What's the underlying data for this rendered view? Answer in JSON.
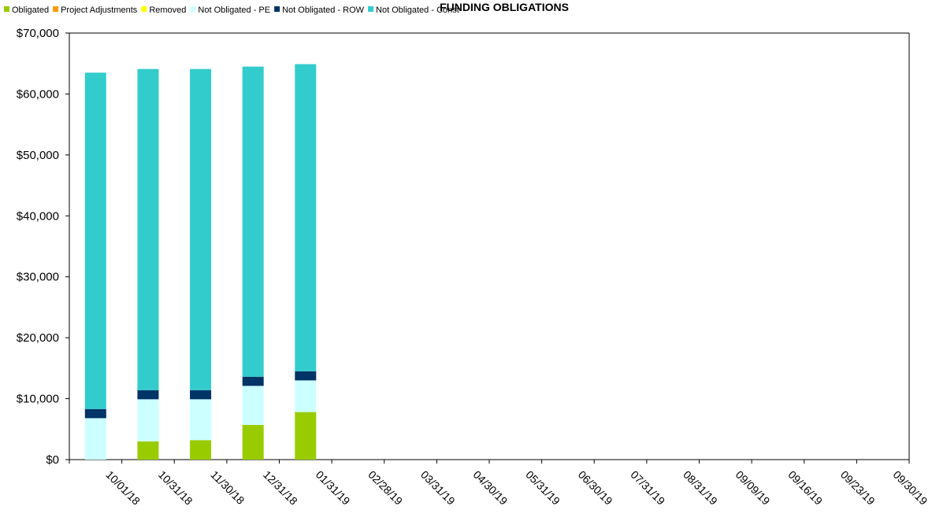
{
  "chart_data": {
    "type": "bar",
    "stacked": true,
    "title": "FUNDING OBLIGATIONS",
    "xlabel": "",
    "ylabel": "",
    "ylim": [
      0,
      70000
    ],
    "yticks": [
      "$0",
      "$10,000",
      "$20,000",
      "$30,000",
      "$40,000",
      "$50,000",
      "$60,000",
      "$70,000"
    ],
    "ytick_values": [
      0,
      10000,
      20000,
      30000,
      40000,
      50000,
      60000,
      70000
    ],
    "grid": false,
    "legend_position": "top-left",
    "categories": [
      "10/01/18",
      "10/31/18",
      "11/30/18",
      "12/31/18",
      "01/31/19",
      "02/28/19",
      "03/31/19",
      "04/30/19",
      "05/31/19",
      "06/30/19",
      "07/31/19",
      "08/31/19",
      "09/09/19",
      "09/16/19",
      "09/23/19",
      "09/30/19"
    ],
    "series": [
      {
        "name": "Obligated",
        "color": "#99cc00",
        "values": [
          0,
          3000,
          3200,
          5700,
          7800,
          0,
          0,
          0,
          0,
          0,
          0,
          0,
          0,
          0,
          0,
          0
        ]
      },
      {
        "name": "Project Adjustments",
        "color": "#ff9900",
        "values": [
          0,
          0,
          0,
          0,
          0,
          0,
          0,
          0,
          0,
          0,
          0,
          0,
          0,
          0,
          0,
          0
        ]
      },
      {
        "name": "Removed",
        "color": "#ffff00",
        "values": [
          0,
          0,
          0,
          0,
          0,
          0,
          0,
          0,
          0,
          0,
          0,
          0,
          0,
          0,
          0,
          0
        ]
      },
      {
        "name": "Not Obligated - PE",
        "color": "#ccffff",
        "values": [
          6800,
          6900,
          6700,
          6400,
          5200,
          0,
          0,
          0,
          0,
          0,
          0,
          0,
          0,
          0,
          0,
          0
        ]
      },
      {
        "name": "Not Obligated - ROW",
        "color": "#003366",
        "values": [
          1500,
          1500,
          1500,
          1500,
          1500,
          0,
          0,
          0,
          0,
          0,
          0,
          0,
          0,
          0,
          0,
          0
        ]
      },
      {
        "name": "Not Obligated - Const",
        "color": "#33cccc",
        "values": [
          55200,
          52700,
          52700,
          50900,
          50400,
          0,
          0,
          0,
          0,
          0,
          0,
          0,
          0,
          0,
          0,
          0
        ]
      }
    ]
  }
}
